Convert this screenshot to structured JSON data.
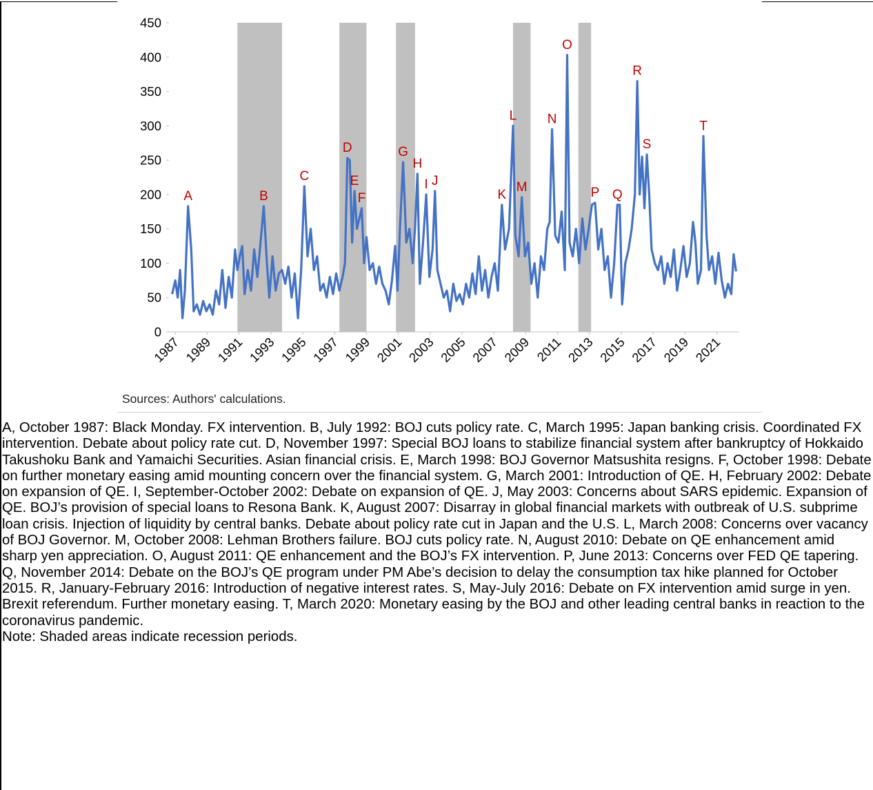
{
  "chart_data": {
    "type": "line",
    "color": "#4472c4",
    "x": [
      1986.8,
      1987.0,
      1987.15,
      1987.3,
      1987.45,
      1987.6,
      1987.8,
      1988.0,
      1988.15,
      1988.35,
      1988.55,
      1988.75,
      1988.95,
      1989.15,
      1989.35,
      1989.55,
      1989.75,
      1989.95,
      1990.15,
      1990.35,
      1990.55,
      1990.75,
      1990.9,
      1991.05,
      1991.2,
      1991.35,
      1991.55,
      1991.75,
      1991.95,
      1992.15,
      1992.35,
      1992.55,
      1992.75,
      1992.9,
      1993.1,
      1993.3,
      1993.5,
      1993.7,
      1993.9,
      1994.1,
      1994.3,
      1994.5,
      1994.7,
      1994.9,
      1995.1,
      1995.3,
      1995.5,
      1995.7,
      1995.9,
      1996.1,
      1996.3,
      1996.5,
      1996.7,
      1996.9,
      1997.1,
      1997.3,
      1997.5,
      1997.65,
      1997.8,
      1997.95,
      1998.1,
      1998.25,
      1998.4,
      1998.55,
      1998.7,
      1998.85,
      1999.0,
      1999.2,
      1999.4,
      1999.6,
      1999.8,
      2000.0,
      2000.2,
      2000.4,
      2000.6,
      2000.8,
      2000.95,
      2001.1,
      2001.3,
      2001.5,
      2001.7,
      2001.9,
      2002.05,
      2002.2,
      2002.35,
      2002.55,
      2002.75,
      2002.95,
      2003.15,
      2003.3,
      2003.45,
      2003.65,
      2003.85,
      2004.05,
      2004.25,
      2004.45,
      2004.65,
      2004.85,
      2005.05,
      2005.25,
      2005.45,
      2005.65,
      2005.85,
      2006.05,
      2006.25,
      2006.45,
      2006.65,
      2006.85,
      2007.05,
      2007.25,
      2007.5,
      2007.7,
      2007.95,
      2008.2,
      2008.35,
      2008.55,
      2008.75,
      2008.95,
      2009.15,
      2009.35,
      2009.55,
      2009.75,
      2009.95,
      2010.15,
      2010.35,
      2010.5,
      2010.65,
      2010.85,
      2011.05,
      2011.25,
      2011.45,
      2011.6,
      2011.75,
      2011.95,
      2012.15,
      2012.35,
      2012.55,
      2012.75,
      2012.95,
      2013.15,
      2013.35,
      2013.55,
      2013.75,
      2013.95,
      2014.15,
      2014.35,
      2014.55,
      2014.75,
      2014.9,
      2015.05,
      2015.25,
      2015.45,
      2015.65,
      2015.85,
      2016.0,
      2016.15,
      2016.3,
      2016.45,
      2016.6,
      2016.75,
      2016.9,
      2017.1,
      2017.3,
      2017.5,
      2017.7,
      2017.9,
      2018.1,
      2018.3,
      2018.5,
      2018.7,
      2018.9,
      2019.1,
      2019.3,
      2019.5,
      2019.65,
      2019.8,
      2020.0,
      2020.15,
      2020.35,
      2020.5,
      2020.7,
      2020.9,
      2021.1,
      2021.3,
      2021.5,
      2021.7,
      2021.9,
      2022.05,
      2022.2
    ],
    "values": [
      55,
      75,
      50,
      90,
      20,
      60,
      183,
      120,
      30,
      40,
      25,
      45,
      30,
      40,
      25,
      60,
      40,
      90,
      35,
      80,
      50,
      120,
      90,
      110,
      125,
      55,
      90,
      60,
      120,
      80,
      130,
      183,
      100,
      50,
      110,
      60,
      85,
      90,
      70,
      95,
      50,
      85,
      20,
      90,
      212,
      110,
      150,
      90,
      110,
      60,
      70,
      50,
      80,
      55,
      85,
      60,
      80,
      100,
      253,
      250,
      130,
      205,
      150,
      165,
      180,
      100,
      138,
      90,
      100,
      70,
      95,
      70,
      60,
      40,
      75,
      125,
      60,
      150,
      247,
      130,
      150,
      100,
      152,
      230,
      70,
      130,
      200,
      80,
      120,
      205,
      90,
      70,
      50,
      60,
      30,
      70,
      45,
      55,
      40,
      70,
      50,
      85,
      55,
      110,
      60,
      90,
      50,
      80,
      100,
      60,
      185,
      120,
      150,
      300,
      140,
      110,
      196,
      110,
      130,
      70,
      100,
      50,
      110,
      90,
      150,
      160,
      295,
      140,
      130,
      175,
      90,
      403,
      130,
      110,
      150,
      100,
      165,
      120,
      150,
      185,
      188,
      120,
      150,
      90,
      110,
      50,
      100,
      185,
      185,
      40,
      100,
      120,
      150,
      200,
      365,
      200,
      255,
      180,
      258,
      200,
      120,
      100,
      90,
      110,
      70,
      100,
      80,
      120,
      60,
      90,
      125,
      80,
      100,
      160,
      130,
      70,
      90,
      285,
      140,
      90,
      110,
      70,
      115,
      75,
      50,
      70,
      55,
      113,
      88
    ],
    "xlim": [
      1986.6,
      2022.4
    ],
    "xticks": [
      1987,
      1989,
      1991,
      1993,
      1995,
      1997,
      1999,
      2001,
      2003,
      2005,
      2007,
      2009,
      2011,
      2013,
      2015,
      2017,
      2019,
      2021
    ],
    "ylim": [
      0,
      450
    ],
    "yticks": [
      0,
      50,
      100,
      150,
      200,
      250,
      300,
      350,
      400,
      450
    ],
    "grid": false,
    "recession_color": "#c0c0c0",
    "recessions": [
      [
        1990.9,
        1993.7
      ],
      [
        1997.3,
        1999.0
      ],
      [
        2000.85,
        2002.05
      ],
      [
        2008.2,
        2009.3
      ],
      [
        2012.3,
        2013.1
      ]
    ],
    "annotation_color": "#c00000",
    "annotations": [
      {
        "label": "A",
        "x": 1987.8,
        "y": 183
      },
      {
        "label": "B",
        "x": 1992.55,
        "y": 183
      },
      {
        "label": "C",
        "x": 1995.1,
        "y": 212
      },
      {
        "label": "D",
        "x": 1997.8,
        "y": 253
      },
      {
        "label": "E",
        "x": 1998.25,
        "y": 205
      },
      {
        "label": "F",
        "x": 1998.7,
        "y": 180
      },
      {
        "label": "G",
        "x": 2001.3,
        "y": 247
      },
      {
        "label": "H",
        "x": 2002.2,
        "y": 230
      },
      {
        "label": "I",
        "x": 2002.75,
        "y": 200
      },
      {
        "label": "J",
        "x": 2003.3,
        "y": 205
      },
      {
        "label": "K",
        "x": 2007.5,
        "y": 185
      },
      {
        "label": "L",
        "x": 2008.2,
        "y": 300
      },
      {
        "label": "M",
        "x": 2008.75,
        "y": 196
      },
      {
        "label": "N",
        "x": 2010.65,
        "y": 295
      },
      {
        "label": "O",
        "x": 2011.6,
        "y": 403
      },
      {
        "label": "P",
        "x": 2013.35,
        "y": 188
      },
      {
        "label": "Q",
        "x": 2014.75,
        "y": 185
      },
      {
        "label": "R",
        "x": 2016.0,
        "y": 365
      },
      {
        "label": "S",
        "x": 2016.6,
        "y": 258
      },
      {
        "label": "T",
        "x": 2020.15,
        "y": 285
      }
    ],
    "source": "Sources: Authors' calculations."
  },
  "notes": {
    "text": "A, October 1987: Black Monday. FX intervention. B, July 1992: BOJ cuts policy rate. C, March 1995: Japan banking crisis. Coordinated FX intervention. Debate about policy rate cut. D, November 1997: Special BOJ loans to stabilize financial system after bankruptcy of Hokkaido Takushoku Bank and Yamaichi Securities. Asian financial crisis. E, March 1998: BOJ Governor Matsushita resigns. F, October 1998: Debate on further monetary easing amid mounting concern over the financial system. G, March 2001: Introduction of QE. H, February 2002: Debate on expansion of QE. I, September-October 2002: Debate on expansion of QE. J, May 2003: Concerns about SARS epidemic. Expansion of QE. BOJ’s provision of special loans to Resona Bank. K, August 2007: Disarray in global financial markets with outbreak of U.S. subprime loan crisis. Injection of liquidity by central banks. Debate about policy rate cut in Japan and the U.S. L, March 2008: Concerns over vacancy of BOJ Governor. M, October 2008: Lehman Brothers failure. BOJ cuts policy rate. N, August 2010: Debate on QE enhancement amid sharp yen appreciation. O, August 2011: QE enhancement and the BOJ’s FX intervention. P, June 2013: Concerns over FED QE tapering. Q, November 2014: Debate on the BOJ’s QE program under PM Abe’s decision to delay the consumption tax hike planned for October 2015. R, January-February 2016: Introduction of negative interest rates. S, May-July 2016: Debate on FX intervention amid surge in yen. Brexit referendum. Further monetary easing. T, March 2020: Monetary easing by the BOJ and other leading central banks in reaction to the coronavirus pandemic.",
    "note": "Note: Shaded areas indicate recession periods."
  }
}
